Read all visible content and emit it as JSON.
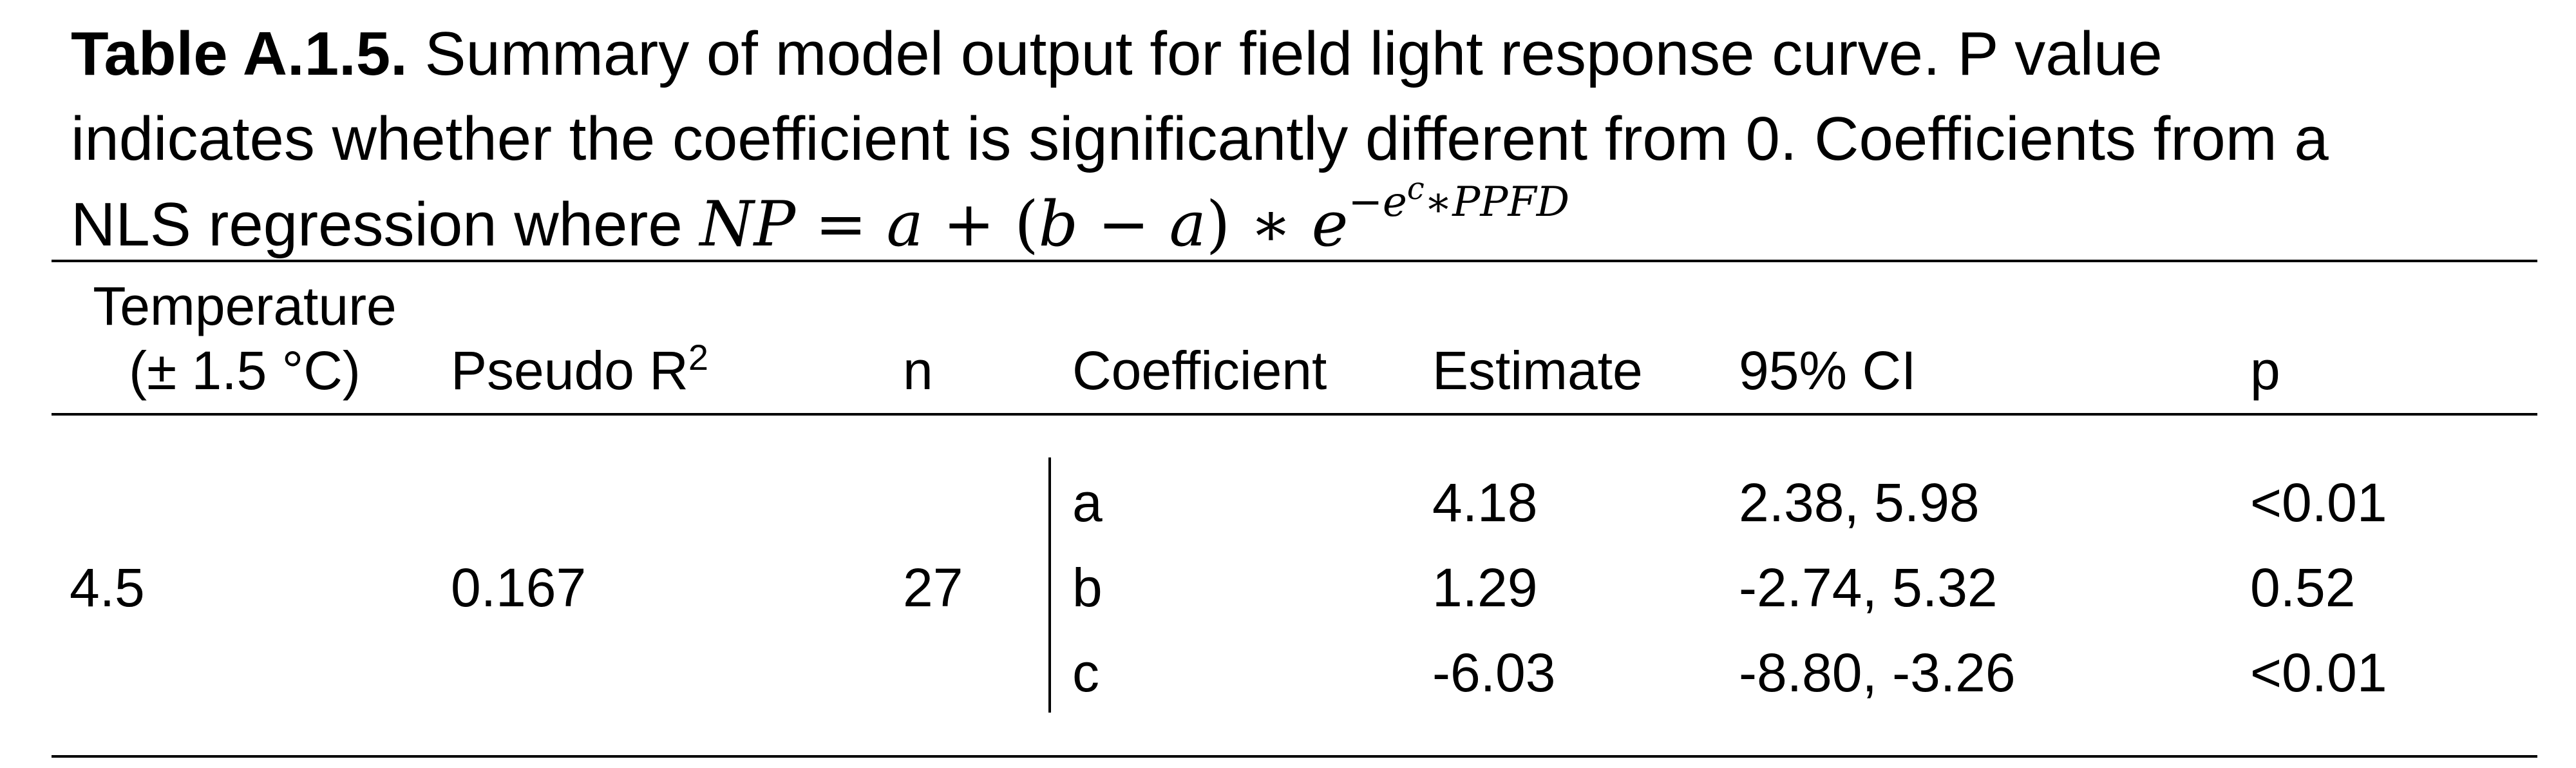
{
  "caption": {
    "label": "Table A.1.5.",
    "text_line1": " Summary of model output for field light response curve. P value",
    "text_line2": "indicates whether the coefficient is significantly different from 0. Coefficients from a",
    "text_line3": "NLS regression where "
  },
  "equation": {
    "lhs": "NP",
    "eq": " = ",
    "a1": "a",
    "plus": " + (",
    "b": "b",
    "minus": " − ",
    "a2": "a",
    "close": ") ∗ ",
    "e": "e",
    "neg": "−",
    "e2": "e",
    "c": "c",
    "star": "∗",
    "ppfd": "PPFD"
  },
  "table": {
    "headers": {
      "temperature_line1": "Temperature",
      "temperature_line2": "(± 1.5 °C)",
      "pseudo_r2": "Pseudo R",
      "pseudo_r2_sup": "2",
      "n": "n",
      "coefficient": "Coefficient",
      "estimate": "Estimate",
      "ci": "95% CI",
      "p": "p"
    },
    "group": {
      "temperature": "4.5",
      "pseudo_r2": "0.167",
      "n": "27"
    },
    "rows": [
      {
        "coefficient": "a",
        "estimate": "4.18",
        "ci": "2.38, 5.98",
        "p": "<0.01"
      },
      {
        "coefficient": "b",
        "estimate": "1.29",
        "ci": "-2.74, 5.32",
        "p": "0.52"
      },
      {
        "coefficient": "c",
        "estimate": "-6.03",
        "ci": "-8.80, -3.26",
        "p": "<0.01"
      }
    ]
  }
}
